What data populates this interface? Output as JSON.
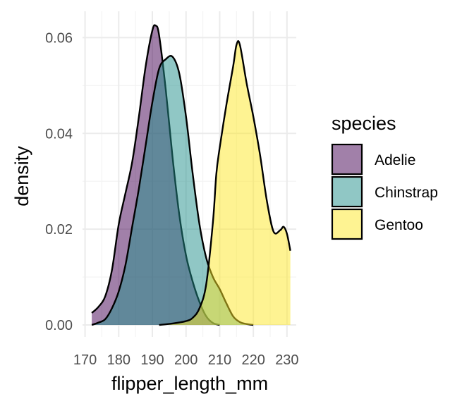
{
  "chart_data": {
    "type": "area",
    "xlabel": "flipper_length_mm",
    "ylabel": "density",
    "xlim": [
      172,
      231
    ],
    "ylim": [
      0,
      0.062
    ],
    "x_ticks": [
      170,
      180,
      190,
      200,
      210,
      220,
      230
    ],
    "x_tick_labels": [
      "170",
      "180",
      "190",
      "200",
      "210",
      "220",
      "230"
    ],
    "y_ticks": [
      0,
      0.02,
      0.04,
      0.06
    ],
    "y_tick_labels": [
      "0.00",
      "0.02",
      "0.04",
      "0.06"
    ],
    "grid": true,
    "legend": {
      "title": "species",
      "position": "right"
    },
    "series": [
      {
        "name": "Adelie",
        "color": "#440154",
        "opacity": 0.5,
        "points": [
          [
            172,
            0.0025
          ],
          [
            174,
            0.0038
          ],
          [
            176,
            0.006
          ],
          [
            178,
            0.0115
          ],
          [
            180,
            0.021
          ],
          [
            182,
            0.0275
          ],
          [
            184,
            0.034
          ],
          [
            186,
            0.0435
          ],
          [
            188,
            0.054
          ],
          [
            190,
            0.0615
          ],
          [
            191,
            0.0625
          ],
          [
            192,
            0.0605
          ],
          [
            194,
            0.049
          ],
          [
            196,
            0.035
          ],
          [
            198,
            0.023
          ],
          [
            200,
            0.0145
          ],
          [
            202,
            0.009
          ],
          [
            204,
            0.0048
          ],
          [
            206,
            0.0018
          ],
          [
            208,
            0.0004
          ],
          [
            210,
            0.0
          ]
        ]
      },
      {
        "name": "Chinstrap",
        "color": "#21908C",
        "opacity": 0.5,
        "points": [
          [
            172,
            0.0
          ],
          [
            174,
            0.0005
          ],
          [
            176,
            0.0012
          ],
          [
            178,
            0.0035
          ],
          [
            180,
            0.007
          ],
          [
            182,
            0.0125
          ],
          [
            184,
            0.0205
          ],
          [
            186,
            0.0285
          ],
          [
            188,
            0.0375
          ],
          [
            190,
            0.0465
          ],
          [
            192,
            0.0535
          ],
          [
            194,
            0.0555
          ],
          [
            196,
            0.056
          ],
          [
            198,
            0.0525
          ],
          [
            200,
            0.0435
          ],
          [
            202,
            0.0315
          ],
          [
            204,
            0.021
          ],
          [
            206,
            0.014
          ],
          [
            208,
            0.01
          ],
          [
            210,
            0.0075
          ],
          [
            212,
            0.0045
          ],
          [
            214,
            0.0018
          ],
          [
            216,
            0.0006
          ],
          [
            218,
            0.0002
          ],
          [
            220,
            0.0
          ]
        ]
      },
      {
        "name": "Gentoo",
        "color": "#FDE725",
        "opacity": 0.5,
        "points": [
          [
            192,
            0.0
          ],
          [
            196,
            0.0003
          ],
          [
            200,
            0.0008
          ],
          [
            202,
            0.0015
          ],
          [
            204,
            0.0035
          ],
          [
            206,
            0.0085
          ],
          [
            208,
            0.0215
          ],
          [
            209,
            0.0315
          ],
          [
            210,
            0.037
          ],
          [
            212,
            0.046
          ],
          [
            214,
            0.054
          ],
          [
            215,
            0.0585
          ],
          [
            216,
            0.0585
          ],
          [
            218,
            0.0505
          ],
          [
            220,
            0.0435
          ],
          [
            222,
            0.0355
          ],
          [
            224,
            0.026
          ],
          [
            226,
            0.0195
          ],
          [
            228,
            0.0198
          ],
          [
            229,
            0.0205
          ],
          [
            230,
            0.019
          ],
          [
            231,
            0.0155
          ]
        ]
      }
    ]
  }
}
